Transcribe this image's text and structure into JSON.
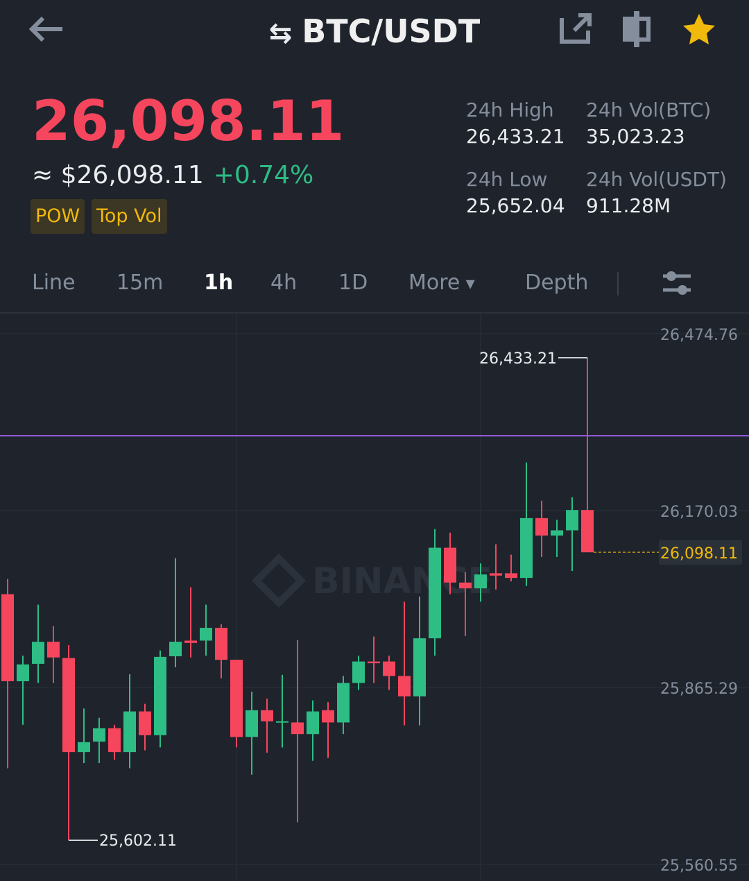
{
  "pair": "BTC/USDT",
  "ticker": {
    "price": "26,098.11",
    "approx": "≈ $26,098.11",
    "change": "+0.74%",
    "tags": [
      "POW",
      "Top Vol"
    ],
    "stats": [
      {
        "label": "24h High",
        "value": "26,433.21"
      },
      {
        "label": "24h Vol(BTC)",
        "value": "35,023.23"
      },
      {
        "label": "24h Low",
        "value": "25,652.04"
      },
      {
        "label": "24h Vol(USDT)",
        "value": "911.28M"
      }
    ]
  },
  "tabs": [
    "Line",
    "15m",
    "1h",
    "4h",
    "1D",
    "More",
    "Depth"
  ],
  "active_tab": 2,
  "chart_data": {
    "type": "candlestick",
    "watermark": "BINANCE",
    "up_color": "#2ebd85",
    "down_color": "#f6465d",
    "open": [
      26026,
      25876,
      25906,
      25944,
      25916,
      25754,
      25772,
      25795,
      25754,
      25824,
      25783,
      25919,
      25946,
      25946,
      25968,
      25913,
      25780,
      25826,
      25805,
      25805,
      25785,
      25826,
      25805,
      25873,
      25910,
      25910,
      25885,
      25850,
      25950,
      26106,
      26046,
      26036,
      26062,
      26062,
      26054,
      26157,
      26127,
      26136,
      26171
    ],
    "high": [
      26052,
      25920,
      26008,
      25971,
      25938,
      25829,
      25813,
      25801,
      25888,
      25837,
      25929,
      26088,
      26038,
      26008,
      25974,
      25913,
      25858,
      25846,
      25887,
      25947,
      25843,
      25840,
      25885,
      25920,
      25953,
      25920,
      26013,
      26022,
      26138,
      26132,
      26064,
      26079,
      26112,
      26094,
      26253,
      26187,
      26154,
      26193,
      26433.21
    ],
    "low": [
      25726,
      25801,
      25873,
      25873,
      25602.11,
      25735,
      25735,
      25741,
      25726,
      25757,
      25762,
      25900,
      25917,
      25920,
      25881,
      25762,
      25715,
      25753,
      25762,
      25633,
      25739,
      25744,
      25785,
      25861,
      25873,
      25861,
      25800,
      25800,
      25920,
      26026,
      25954,
      26013,
      26034,
      26048,
      26040,
      26090,
      26090,
      26066,
      26098.11
    ],
    "close": [
      25876,
      25905,
      25944,
      25917,
      25754,
      25771,
      25795,
      25754,
      25824,
      25783,
      25918,
      25944,
      25942,
      25968,
      25913,
      25780,
      25826,
      25807,
      25807,
      25785,
      25824,
      25805,
      25873,
      25910,
      25907,
      25885,
      25850,
      25950,
      26106,
      26046,
      26036,
      26060,
      26058,
      26054,
      26157,
      26127,
      26136,
      26171,
      26098.11
    ],
    "high_label": "26,433.21",
    "low_label": "25,602.11",
    "last_label": "26,098.11",
    "reference_line": {
      "value": 26299,
      "color": "#9b5de5"
    },
    "ylim": [
      25541.43,
      26505.83
    ],
    "yticks": [
      {
        "value": 26474.76,
        "label": "26,474.76"
      },
      {
        "value": 26170.03,
        "label": "26,170.03"
      },
      {
        "value": 25865.29,
        "label": "25,865.29"
      },
      {
        "value": 25560.55,
        "label": "25,560.55"
      }
    ],
    "grid": true
  }
}
